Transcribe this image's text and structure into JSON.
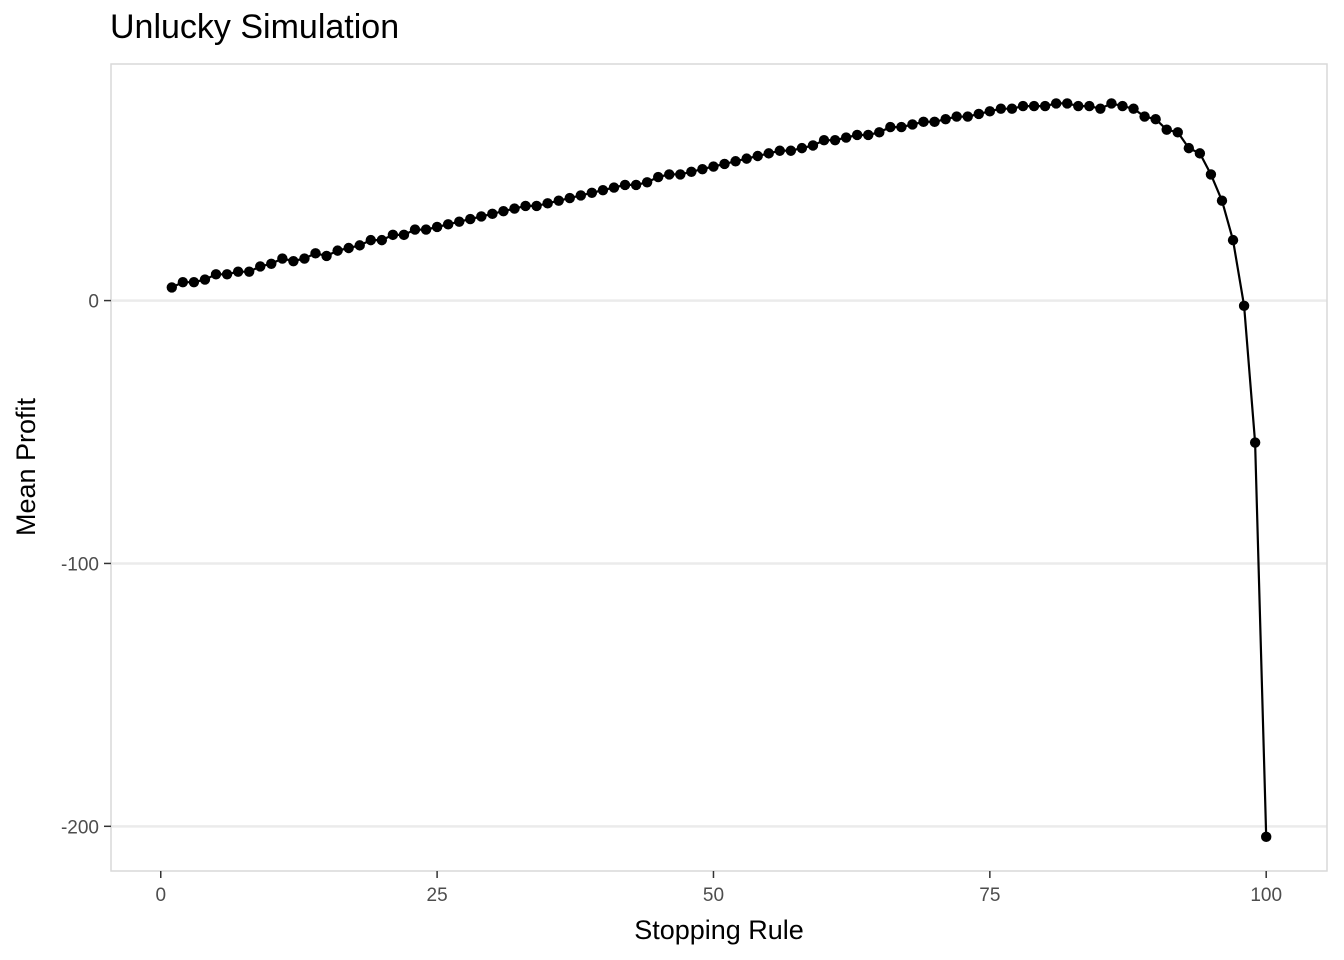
{
  "chart_data": {
    "type": "line",
    "title": "Unlucky Simulation",
    "xlabel": "Stopping Rule",
    "ylabel": "Mean Profit",
    "xlim": [
      -4.5,
      105.5
    ],
    "ylim": [
      -217,
      90
    ],
    "x_ticks": [
      0,
      25,
      50,
      75,
      100
    ],
    "y_ticks": [
      -200,
      -100,
      0
    ],
    "grid": "horizontal major",
    "markers": true,
    "series": [
      {
        "color": "#000000",
        "x": [
          1,
          2,
          3,
          4,
          5,
          6,
          7,
          8,
          9,
          10,
          11,
          12,
          13,
          14,
          15,
          16,
          17,
          18,
          19,
          20,
          21,
          22,
          23,
          24,
          25,
          26,
          27,
          28,
          29,
          30,
          31,
          32,
          33,
          34,
          35,
          36,
          37,
          38,
          39,
          40,
          41,
          42,
          43,
          44,
          45,
          46,
          47,
          48,
          49,
          50,
          51,
          52,
          53,
          54,
          55,
          56,
          57,
          58,
          59,
          60,
          61,
          62,
          63,
          64,
          65,
          66,
          67,
          68,
          69,
          70,
          71,
          72,
          73,
          74,
          75,
          76,
          77,
          78,
          79,
          80,
          81,
          82,
          83,
          84,
          85,
          86,
          87,
          88,
          89,
          90,
          91,
          92,
          93,
          94,
          95,
          96,
          97,
          98,
          99,
          100
        ],
        "y": [
          5,
          7,
          7,
          8,
          10,
          10,
          11,
          11,
          13,
          14,
          16,
          15,
          16,
          18,
          17,
          19,
          20,
          21,
          23,
          23,
          25,
          25,
          27,
          27,
          28,
          29,
          30,
          31,
          32,
          33,
          34,
          35,
          36,
          36,
          37,
          38,
          39,
          40,
          41,
          42,
          43,
          44,
          44,
          45,
          47,
          48,
          48,
          49,
          50,
          51,
          52,
          53,
          54,
          55,
          56,
          57,
          57,
          58,
          59,
          61,
          61,
          62,
          63,
          63,
          64,
          66,
          66,
          67,
          68,
          68,
          69,
          70,
          70,
          71,
          72,
          73,
          73,
          74,
          74,
          74,
          75,
          75,
          74,
          74,
          73,
          75,
          74,
          73,
          70,
          69,
          65,
          64,
          58,
          56,
          48,
          38,
          23,
          -2,
          -54,
          -204
        ]
      }
    ]
  }
}
